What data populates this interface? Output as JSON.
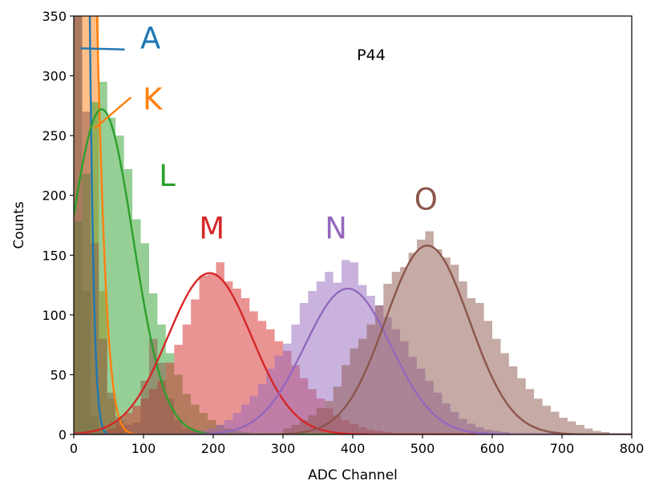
{
  "chart_data": {
    "type": "histogram",
    "annotation": "P44",
    "xlabel": "ADC Channel",
    "ylabel": "Counts",
    "xlim": [
      0,
      800
    ],
    "ylim": [
      0,
      350
    ],
    "xticks": [
      0,
      100,
      200,
      300,
      400,
      500,
      600,
      700,
      800
    ],
    "yticks": [
      0,
      50,
      100,
      150,
      200,
      250,
      300,
      350
    ],
    "bin_width": 12,
    "series": [
      {
        "name": "A",
        "color": "#1f77b4",
        "fit": {
          "amp": 2200,
          "mu": 0,
          "sigma": 12
        },
        "bars": [
          [
            0,
            350
          ],
          [
            12,
            120
          ],
          [
            24,
            15
          ],
          [
            36,
            3
          ]
        ]
      },
      {
        "name": "K",
        "color": "#ff7f0e",
        "fit": {
          "amp": 1100,
          "mu": 0,
          "sigma": 22
        },
        "bars": [
          [
            0,
            350
          ],
          [
            12,
            350
          ],
          [
            24,
            350
          ],
          [
            36,
            120
          ],
          [
            48,
            30
          ],
          [
            60,
            8
          ],
          [
            72,
            2
          ]
        ]
      },
      {
        "name": "L",
        "color": "#2ca02c",
        "fit": {
          "amp": 272,
          "mu": 40,
          "sigma": 45
        },
        "bars": [
          [
            0,
            178
          ],
          [
            12,
            218
          ],
          [
            24,
            278
          ],
          [
            36,
            295
          ],
          [
            48,
            265
          ],
          [
            60,
            250
          ],
          [
            72,
            222
          ],
          [
            84,
            180
          ],
          [
            96,
            160
          ],
          [
            108,
            118
          ],
          [
            120,
            92
          ],
          [
            132,
            68
          ],
          [
            144,
            50
          ],
          [
            156,
            34
          ],
          [
            168,
            25
          ],
          [
            180,
            18
          ],
          [
            192,
            12
          ],
          [
            204,
            8
          ],
          [
            216,
            5
          ],
          [
            228,
            3
          ],
          [
            240,
            2
          ]
        ]
      },
      {
        "name": "M",
        "color": "#d62728",
        "fit": {
          "amp": 135,
          "mu": 195,
          "sigma": 60
        },
        "bars": [
          [
            48,
            5
          ],
          [
            60,
            12
          ],
          [
            72,
            18
          ],
          [
            84,
            24
          ],
          [
            96,
            30
          ],
          [
            108,
            38
          ],
          [
            120,
            45
          ],
          [
            132,
            60
          ],
          [
            144,
            75
          ],
          [
            156,
            92
          ],
          [
            168,
            113
          ],
          [
            180,
            133
          ],
          [
            192,
            134
          ],
          [
            204,
            144
          ],
          [
            216,
            128
          ],
          [
            228,
            122
          ],
          [
            240,
            114
          ],
          [
            252,
            103
          ],
          [
            264,
            95
          ],
          [
            276,
            88
          ],
          [
            288,
            78
          ],
          [
            300,
            70
          ],
          [
            312,
            58
          ],
          [
            324,
            47
          ],
          [
            336,
            38
          ],
          [
            348,
            30
          ],
          [
            360,
            22
          ],
          [
            372,
            16
          ],
          [
            384,
            12
          ],
          [
            396,
            9
          ],
          [
            408,
            6
          ],
          [
            420,
            4
          ],
          [
            432,
            3
          ],
          [
            444,
            2
          ],
          [
            456,
            1
          ]
        ]
      },
      {
        "name": "N",
        "color": "#9467bd",
        "fit": {
          "amp": 122,
          "mu": 393,
          "sigma": 62
        },
        "bars": [
          [
            168,
            2
          ],
          [
            180,
            3
          ],
          [
            192,
            5
          ],
          [
            204,
            8
          ],
          [
            216,
            12
          ],
          [
            228,
            18
          ],
          [
            240,
            25
          ],
          [
            252,
            32
          ],
          [
            264,
            42
          ],
          [
            276,
            55
          ],
          [
            288,
            66
          ],
          [
            300,
            76
          ],
          [
            312,
            92
          ],
          [
            324,
            110
          ],
          [
            336,
            120
          ],
          [
            348,
            128
          ],
          [
            360,
            136
          ],
          [
            372,
            127
          ],
          [
            384,
            146
          ],
          [
            396,
            144
          ],
          [
            408,
            125
          ],
          [
            420,
            116
          ],
          [
            432,
            108
          ],
          [
            444,
            98
          ],
          [
            456,
            88
          ],
          [
            468,
            78
          ],
          [
            480,
            65
          ],
          [
            492,
            55
          ],
          [
            504,
            45
          ],
          [
            516,
            35
          ],
          [
            528,
            26
          ],
          [
            540,
            19
          ],
          [
            552,
            13
          ],
          [
            564,
            9
          ],
          [
            576,
            6
          ],
          [
            588,
            4
          ],
          [
            600,
            3
          ],
          [
            612,
            2
          ]
        ]
      },
      {
        "name": "O",
        "color": "#8c564b",
        "fit": {
          "amp": 158,
          "mu": 507,
          "sigma": 60
        },
        "bars": [
          [
            0,
            350
          ],
          [
            12,
            270
          ],
          [
            24,
            160
          ],
          [
            36,
            80
          ],
          [
            48,
            35
          ],
          [
            60,
            15
          ],
          [
            72,
            8
          ],
          [
            84,
            10
          ],
          [
            96,
            45
          ],
          [
            108,
            80
          ],
          [
            120,
            60
          ],
          [
            132,
            30
          ],
          [
            144,
            12
          ],
          [
            156,
            5
          ],
          [
            168,
            3
          ],
          [
            300,
            5
          ],
          [
            312,
            8
          ],
          [
            324,
            12
          ],
          [
            336,
            16
          ],
          [
            348,
            22
          ],
          [
            360,
            28
          ],
          [
            372,
            40
          ],
          [
            384,
            58
          ],
          [
            396,
            72
          ],
          [
            408,
            80
          ],
          [
            420,
            92
          ],
          [
            432,
            108
          ],
          [
            444,
            126
          ],
          [
            456,
            136
          ],
          [
            468,
            140
          ],
          [
            480,
            152
          ],
          [
            492,
            163
          ],
          [
            504,
            170
          ],
          [
            516,
            155
          ],
          [
            528,
            148
          ],
          [
            540,
            142
          ],
          [
            552,
            128
          ],
          [
            564,
            114
          ],
          [
            576,
            110
          ],
          [
            588,
            95
          ],
          [
            600,
            80
          ],
          [
            612,
            68
          ],
          [
            624,
            57
          ],
          [
            636,
            47
          ],
          [
            648,
            38
          ],
          [
            660,
            30
          ],
          [
            672,
            24
          ],
          [
            684,
            19
          ],
          [
            696,
            14
          ],
          [
            708,
            11
          ],
          [
            720,
            8
          ],
          [
            732,
            5
          ],
          [
            744,
            3
          ],
          [
            756,
            2
          ],
          [
            768,
            1
          ]
        ]
      }
    ],
    "labels": [
      {
        "text": "A",
        "color": "#1f77b4",
        "x": 110,
        "y": 323
      },
      {
        "text": "K",
        "color": "#ff7f0e",
        "x": 113,
        "y": 272
      },
      {
        "text": "L",
        "color": "#2ca02c",
        "x": 134,
        "y": 208
      },
      {
        "text": "M",
        "color": "#d62728",
        "x": 198,
        "y": 164
      },
      {
        "text": "N",
        "color": "#9467bd",
        "x": 376,
        "y": 164
      },
      {
        "text": "O",
        "color": "#8c564b",
        "x": 505,
        "y": 188
      }
    ]
  }
}
